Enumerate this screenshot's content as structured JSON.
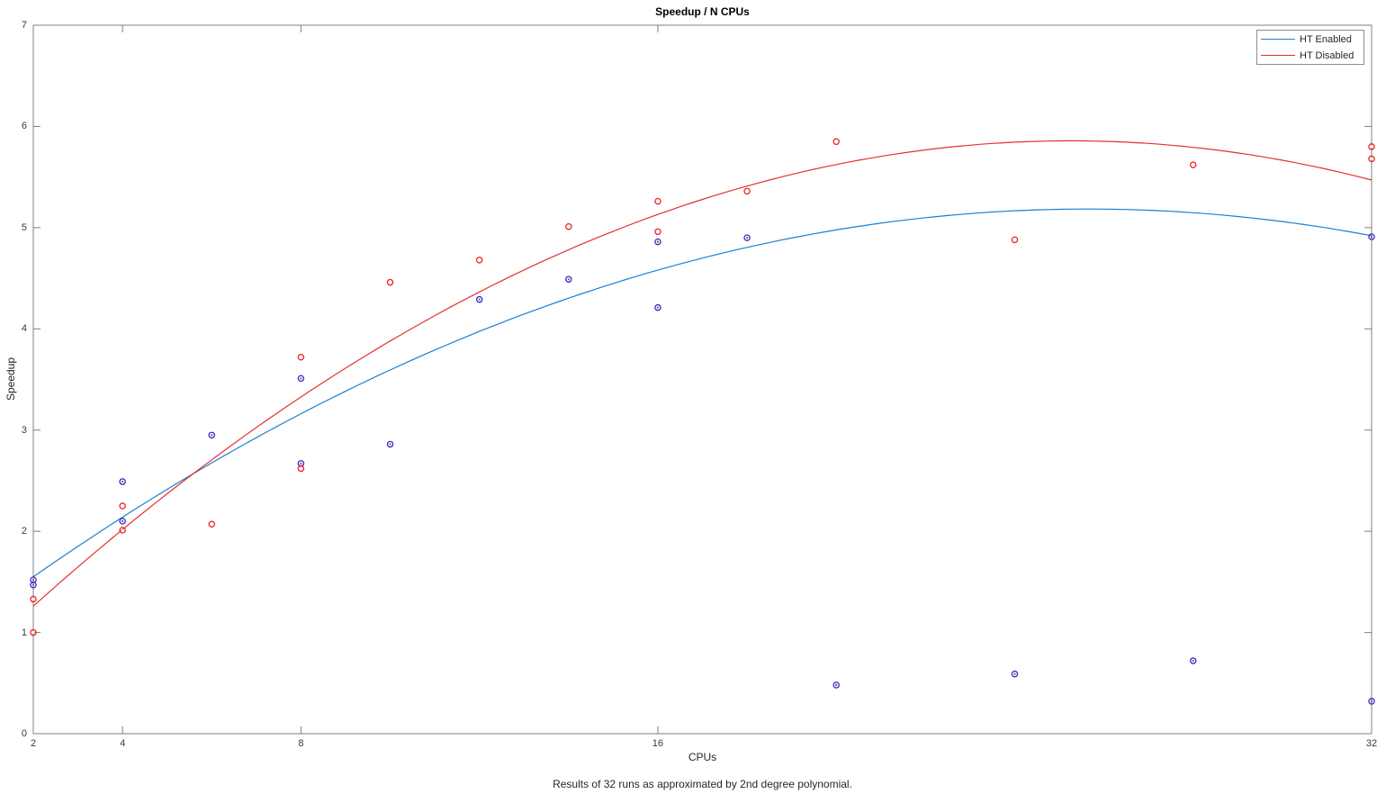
{
  "figure": {
    "title": "Speedup / N CPUs",
    "xlabel": "CPUs",
    "ylabel": "Speedup",
    "caption": "Results of 32 runs as approximated by 2nd degree polynomial."
  },
  "chart_data": {
    "type": "scatter",
    "title": "Speedup / N CPUs",
    "xlabel": "CPUs",
    "ylabel": "Speedup",
    "xlim": [
      2,
      32
    ],
    "ylim": [
      0,
      7
    ],
    "x_ticks": [
      2,
      4,
      8,
      16,
      32
    ],
    "y_ticks": [
      0,
      1,
      2,
      3,
      4,
      5,
      6,
      7
    ],
    "grid": false,
    "legend_position": "top-right",
    "axis_color": "#808080",
    "tick_length": 8,
    "series": [
      {
        "name": "HT Enabled",
        "line_color": "#1b7fd4",
        "marker_color": "#2b2bd4",
        "marker_center_color": "#cf2e2e",
        "fit": {
          "type": "poly2",
          "coeffs": [
            -0.0065059,
            0.33354,
            0.90895
          ]
        },
        "points": [
          [
            2,
            1.52
          ],
          [
            2,
            1.47
          ],
          [
            4,
            2.49
          ],
          [
            4,
            2.1
          ],
          [
            6,
            2.95
          ],
          [
            8,
            3.51
          ],
          [
            8,
            2.67
          ],
          [
            10,
            2.86
          ],
          [
            12,
            4.29
          ],
          [
            14,
            4.49
          ],
          [
            16,
            4.86
          ],
          [
            16,
            4.21
          ],
          [
            18,
            4.9
          ],
          [
            20,
            0.48
          ],
          [
            24,
            0.59
          ],
          [
            28,
            0.72
          ],
          [
            32,
            4.91
          ],
          [
            32,
            0.32
          ]
        ]
      },
      {
        "name": "HT Disabled",
        "line_color": "#e53030",
        "marker_color": "#ee2222",
        "marker_center_color": "#ffffff",
        "fit": {
          "type": "poly2",
          "coeffs": [
            -0.0085059,
            0.42954,
            0.43495
          ]
        },
        "points": [
          [
            2,
            1.33
          ],
          [
            2,
            1.0
          ],
          [
            4,
            2.25
          ],
          [
            4,
            2.01
          ],
          [
            6,
            2.07
          ],
          [
            8,
            3.72
          ],
          [
            8,
            2.62
          ],
          [
            10,
            4.46
          ],
          [
            12,
            4.68
          ],
          [
            14,
            5.01
          ],
          [
            16,
            5.26
          ],
          [
            16,
            4.96
          ],
          [
            18,
            5.36
          ],
          [
            20,
            5.85
          ],
          [
            24,
            4.88
          ],
          [
            28,
            5.62
          ],
          [
            32,
            5.8
          ],
          [
            32,
            5.68
          ]
        ]
      }
    ]
  }
}
